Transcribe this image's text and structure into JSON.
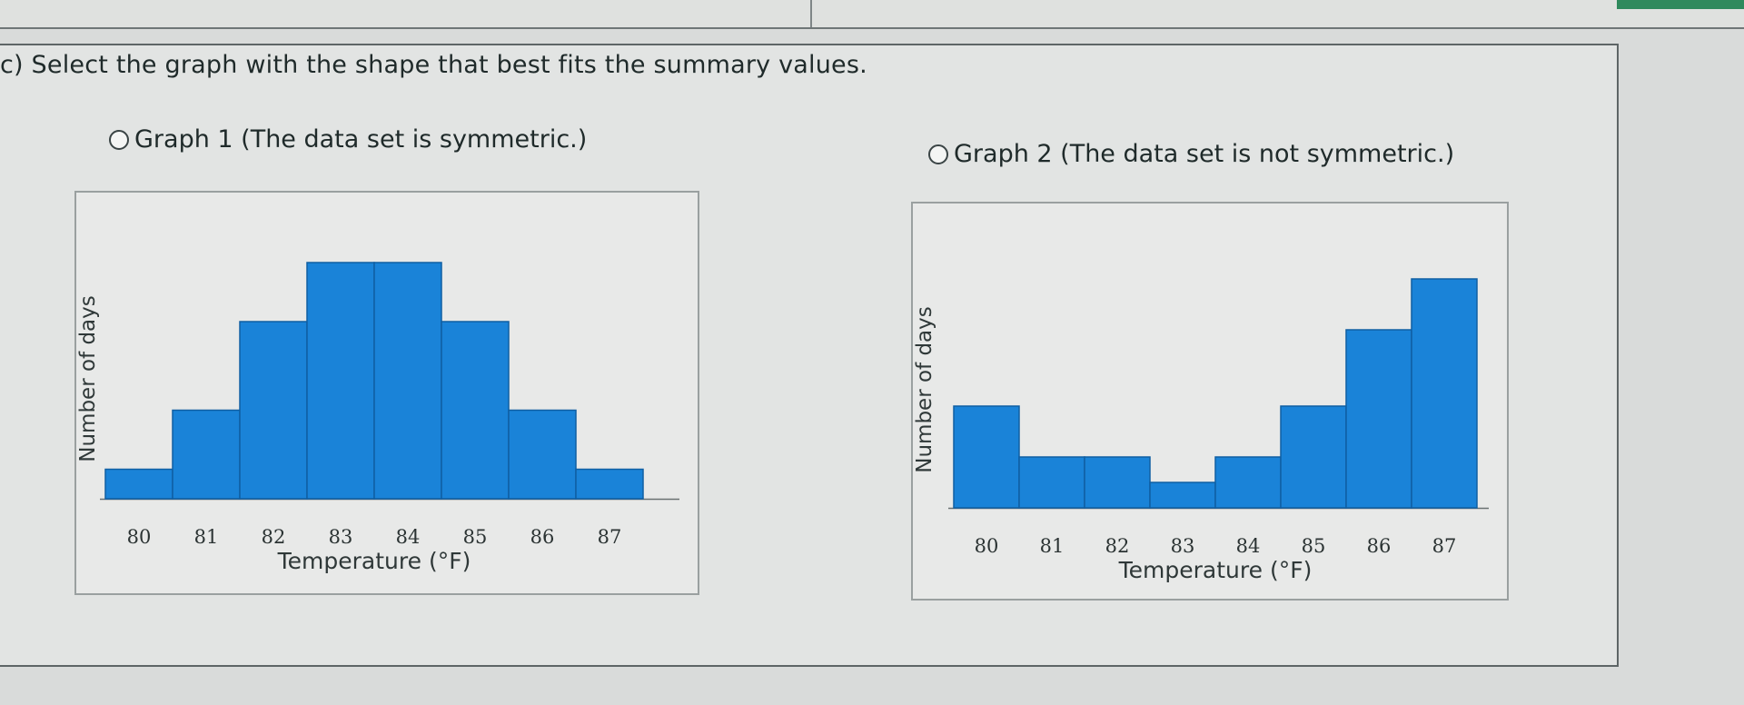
{
  "question": {
    "text": "c) Select the graph with the shape that best fits the summary values."
  },
  "options": [
    {
      "label": "Graph 1 (The data set is symmetric.)"
    },
    {
      "label": "Graph 2 (The data set is not symmetric.)"
    }
  ],
  "colors": {
    "bar": "#1a83d8",
    "bar_edge": "#0f5fa3"
  },
  "chart_data": [
    {
      "type": "bar",
      "categories": [
        "80",
        "81",
        "82",
        "83",
        "84",
        "85",
        "86",
        "87"
      ],
      "values": [
        1,
        3,
        6,
        8,
        8,
        6,
        3,
        1
      ],
      "xlabel": "Temperature (°F)",
      "ylabel": "Number of days"
    },
    {
      "type": "bar",
      "categories": [
        "80",
        "81",
        "82",
        "83",
        "84",
        "85",
        "86",
        "87"
      ],
      "values": [
        4,
        2,
        2,
        1,
        2,
        4,
        7,
        9
      ],
      "xlabel": "Temperature (°F)",
      "ylabel": "Number of days"
    }
  ]
}
